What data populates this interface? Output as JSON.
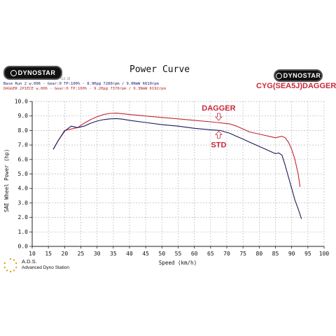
{
  "header": {
    "logo_left_text": "DYNOSTAR",
    "logo_right_text": "DYNOSTAR",
    "title": "Power Curve",
    "subtitle_right": "CYG(SEA5J)DAGGER",
    "small_code": "Y12-25",
    "run_base": "Base Run 2 w.006 - Gear:0 TP:100%  - 8.9Hp@ 7280rpm / 9.0NmW 6610rpm",
    "run_dagger": "DAGGER 2P1ECE w.006 - Gear:0 TP:100%  - 9.2Hp@ 7370rpm / 9.3NmW 6192rpm"
  },
  "footer": {
    "ads_name": "A.D.S.",
    "ads_subtitle": "Advanced Dyno Station"
  },
  "colors": {
    "dagger": "#c0282d",
    "std": "#1a1a5e",
    "axis": "#222222",
    "grid": "#b9b9b9",
    "annotation": "#c8283a"
  },
  "chart_data": {
    "type": "line",
    "title": "Power Curve",
    "xlabel": "Speed (km/h)",
    "ylabel": "SAE Wheel Power (hp)",
    "xlim": [
      10,
      100
    ],
    "ylim": [
      0,
      10
    ],
    "xticks": [
      10,
      15,
      20,
      25,
      30,
      35,
      40,
      45,
      50,
      55,
      60,
      65,
      70,
      75,
      80,
      85,
      90,
      95,
      100
    ],
    "yticks": [
      0,
      1,
      2,
      3,
      4,
      5,
      6,
      7,
      8,
      9,
      10
    ],
    "xtick_labels": [
      "10",
      "15",
      "20",
      "25",
      "30",
      "35",
      "40",
      "45",
      "50",
      "55",
      "60",
      "65",
      "70",
      "75",
      "80",
      "85",
      "90",
      "95",
      "100"
    ],
    "ytick_labels": [
      "0.0",
      "1.0",
      "2.0",
      "3.0",
      "4.0",
      "5.0",
      "6.0",
      "7.0",
      "8.0",
      "9.0",
      "10.0"
    ],
    "grid": true,
    "annotations": [
      {
        "text": "DAGGER",
        "series": "dagger",
        "x": 67.5,
        "y": 8.55,
        "arrow": "down"
      },
      {
        "text": "STD",
        "series": "std",
        "x": 67.5,
        "y": 8.05,
        "arrow": "up"
      }
    ],
    "series": [
      {
        "key": "dagger",
        "x": [
          16.5,
          18,
          20,
          22,
          24,
          26,
          28,
          30,
          32,
          34,
          36,
          38,
          40,
          45,
          50,
          55,
          60,
          65,
          67,
          69,
          71,
          73,
          75,
          77,
          79,
          81,
          83,
          85,
          86,
          87,
          87.5,
          88,
          89,
          90,
          91,
          92,
          92.6
        ],
        "y": [
          6.7,
          7.3,
          8.0,
          8.1,
          8.2,
          8.5,
          8.75,
          8.95,
          9.1,
          9.18,
          9.2,
          9.15,
          9.1,
          9.0,
          8.9,
          8.8,
          8.7,
          8.6,
          8.55,
          8.5,
          8.45,
          8.3,
          8.1,
          7.9,
          7.8,
          7.7,
          7.6,
          7.5,
          7.55,
          7.6,
          7.55,
          7.5,
          7.2,
          6.7,
          6.0,
          5.0,
          4.1
        ]
      },
      {
        "key": "std",
        "x": [
          16.5,
          18,
          20,
          22,
          24,
          26,
          28,
          30,
          32,
          34,
          36,
          38,
          40,
          45,
          50,
          55,
          60,
          65,
          68,
          71,
          73,
          75,
          77,
          79,
          81,
          83,
          85,
          86,
          87,
          88,
          89,
          90,
          91,
          92,
          92.6,
          93
        ],
        "y": [
          6.7,
          7.3,
          7.95,
          8.3,
          8.2,
          8.3,
          8.5,
          8.65,
          8.75,
          8.8,
          8.82,
          8.78,
          8.7,
          8.55,
          8.4,
          8.3,
          8.15,
          8.05,
          8.0,
          7.8,
          7.6,
          7.4,
          7.2,
          7.0,
          6.8,
          6.6,
          6.4,
          6.45,
          6.3,
          5.6,
          4.8,
          4.0,
          3.2,
          2.6,
          2.2,
          1.9
        ]
      }
    ]
  }
}
